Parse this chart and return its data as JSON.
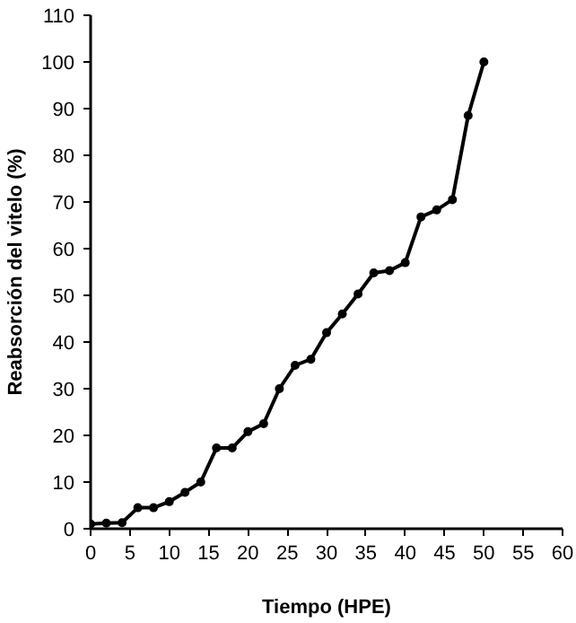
{
  "chart_data": {
    "type": "line",
    "xlabel": "Tiempo (HPE)",
    "ylabel": "Reabsorción del vitelo (%)",
    "x": [
      0,
      2,
      4,
      6,
      8,
      10,
      12,
      14,
      16,
      18,
      20,
      22,
      24,
      26,
      28,
      30,
      32,
      34,
      36,
      38,
      40,
      42,
      44,
      46,
      48,
      50
    ],
    "series": [
      {
        "color": "#000000",
        "values": [
          1,
          1.2,
          1.3,
          4.5,
          4.5,
          5.8,
          7.8,
          10,
          17.3,
          17.3,
          20.8,
          22.5,
          30,
          35,
          36.3,
          42,
          46,
          50.3,
          54.8,
          55.3,
          57,
          66.8,
          68.3,
          70.5,
          88.5,
          100
        ]
      }
    ],
    "xlim": [
      0,
      60
    ],
    "xticks": [
      0,
      5,
      10,
      15,
      20,
      25,
      30,
      35,
      40,
      45,
      50,
      55,
      60
    ],
    "ylim": [
      0,
      110
    ],
    "yticks": [
      0,
      10,
      20,
      30,
      40,
      50,
      60,
      70,
      80,
      90,
      100,
      110
    ],
    "grid": false,
    "marker": "circle",
    "line_style": "solid"
  }
}
